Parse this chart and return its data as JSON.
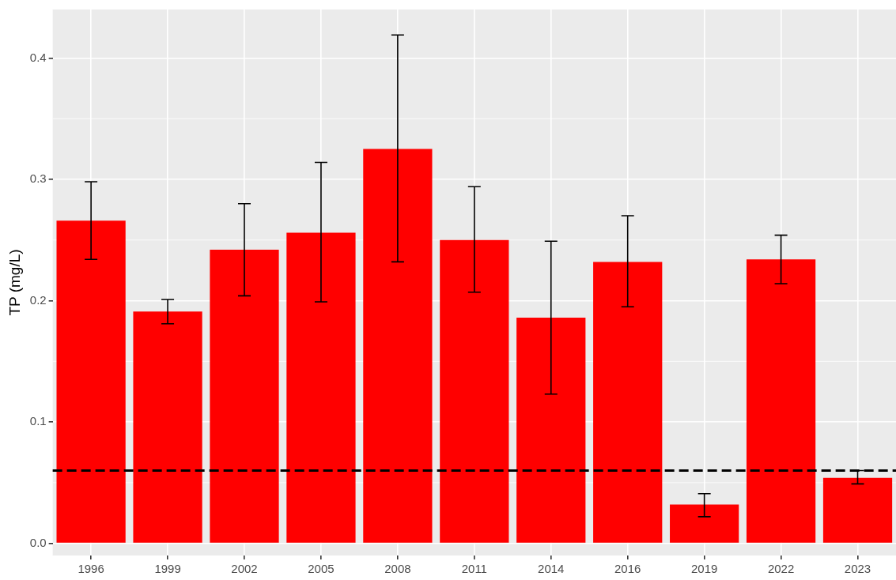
{
  "chart_data": {
    "type": "bar",
    "ylabel": "TP (mg/L)",
    "categories": [
      "1996",
      "1999",
      "2002",
      "2005",
      "2008",
      "2011",
      "2014",
      "2016",
      "2019",
      "2022",
      "2023"
    ],
    "values": [
      0.266,
      0.191,
      0.242,
      0.256,
      0.325,
      0.25,
      0.186,
      0.232,
      0.032,
      0.234,
      0.054
    ],
    "color": "#ff0000",
    "errors": [
      [
        0.234,
        0.298
      ],
      [
        0.181,
        0.201
      ],
      [
        0.204,
        0.28
      ],
      [
        0.199,
        0.314
      ],
      [
        0.232,
        0.419
      ],
      [
        0.207,
        0.294
      ],
      [
        0.123,
        0.249
      ],
      [
        0.195,
        0.27
      ],
      [
        0.022,
        0.041
      ],
      [
        0.214,
        0.254
      ],
      [
        0.049,
        0.06
      ]
    ],
    "ylim": [
      -0.01,
      0.44
    ],
    "yticks": [
      {
        "value": 0,
        "label": "0.0"
      },
      {
        "value": 0.1,
        "label": "0.1"
      },
      {
        "value": 0.2,
        "label": "0.2"
      },
      {
        "value": 0.3,
        "label": "0.3"
      },
      {
        "value": 0.4,
        "label": "0.4"
      }
    ],
    "ref_lines": [
      {
        "axis": "y",
        "value": 0.06,
        "color": "#000000",
        "line_style": "dashed"
      }
    ],
    "grid": true
  }
}
